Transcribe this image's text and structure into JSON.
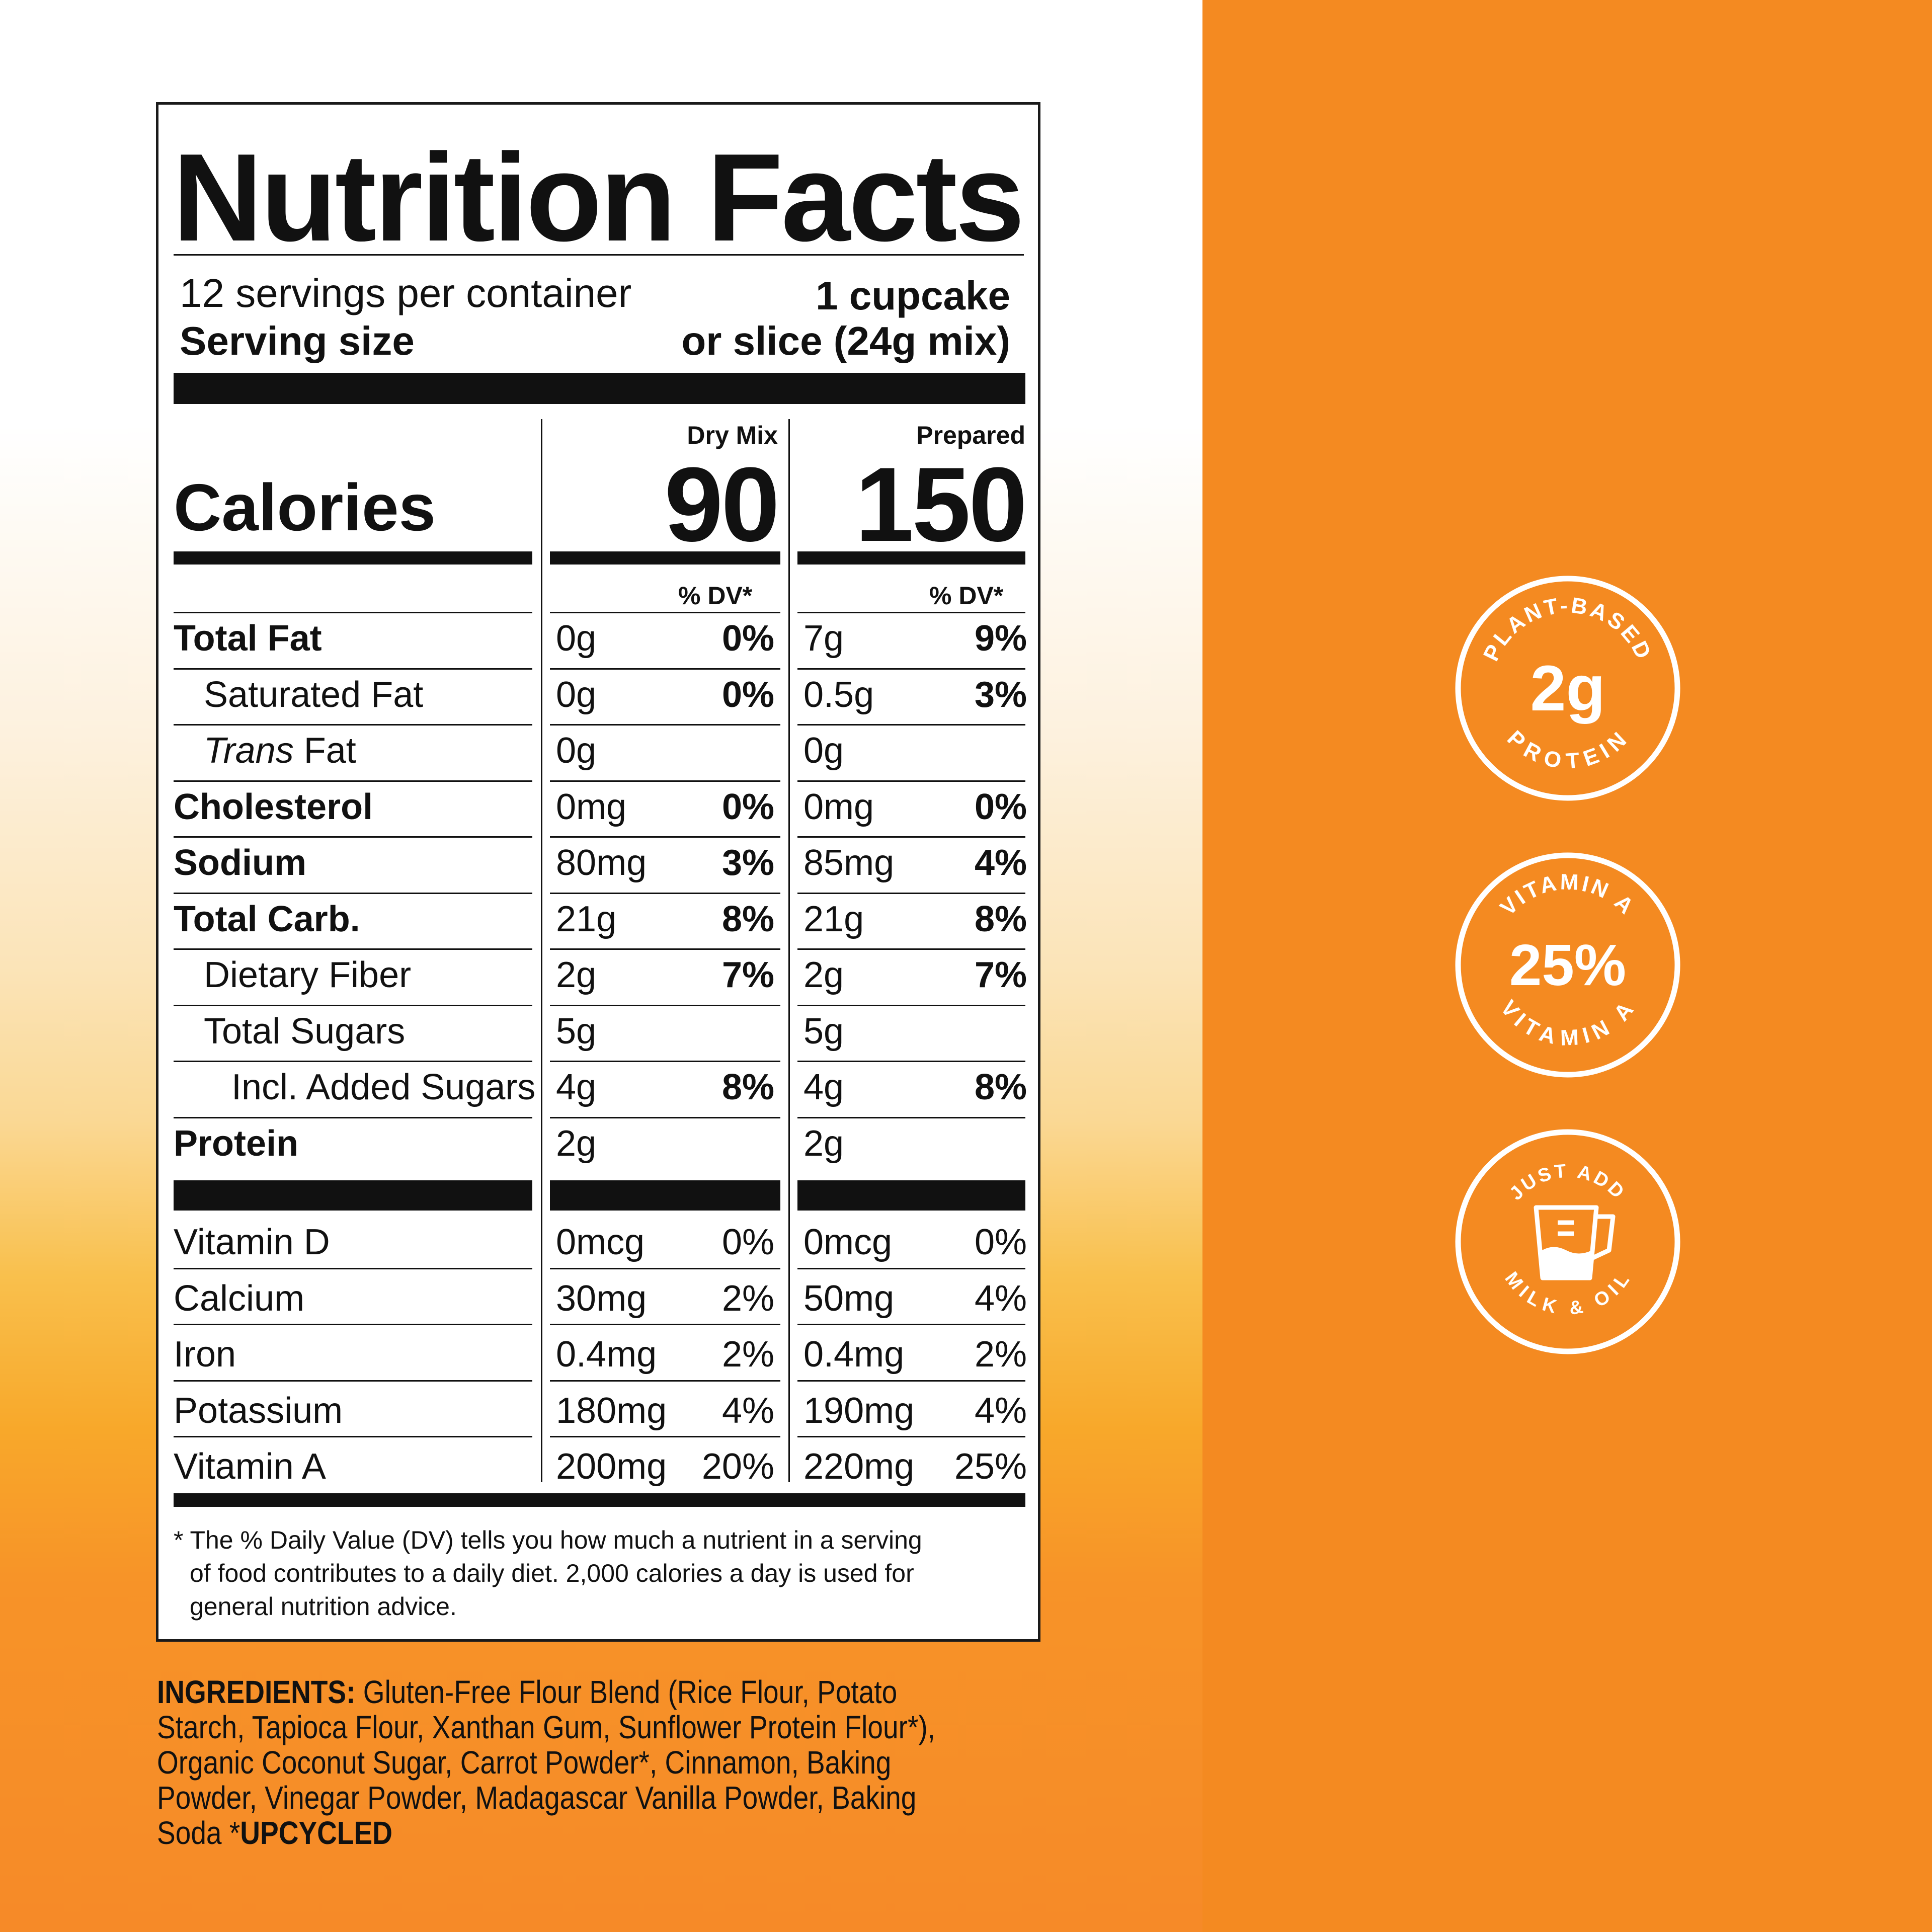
{
  "nutrition_facts": {
    "title": "Nutrition Facts",
    "servings_per_container": "12 servings per container",
    "serving_size_label": "Serving size",
    "serving_size_line1": "1 cupcake",
    "serving_size_line2": "or slice (24g mix)",
    "columns": {
      "dry": "Dry Mix",
      "prepared": "Prepared"
    },
    "calories_label": "Calories",
    "calories_dry": "90",
    "calories_prepared": "150",
    "dv_header": "% DV*",
    "rows": [
      {
        "label": "Total Fat",
        "dry_amt": "0g",
        "dry_dv": "0%",
        "prep_amt": "7g",
        "prep_dv": "9%"
      },
      {
        "label": "Saturated Fat",
        "dry_amt": "0g",
        "dry_dv": "0%",
        "prep_amt": "0.5g",
        "prep_dv": "3%"
      },
      {
        "label_italic": "Trans",
        "label": " Fat",
        "dry_amt": "0g",
        "dry_dv": "",
        "prep_amt": "0g",
        "prep_dv": ""
      },
      {
        "label": "Cholesterol",
        "dry_amt": "0mg",
        "dry_dv": "0%",
        "prep_amt": "0mg",
        "prep_dv": "0%"
      },
      {
        "label": "Sodium",
        "dry_amt": "80mg",
        "dry_dv": "3%",
        "prep_amt": "85mg",
        "prep_dv": "4%"
      },
      {
        "label": "Total Carb.",
        "dry_amt": "21g",
        "dry_dv": "8%",
        "prep_amt": "21g",
        "prep_dv": "8%"
      },
      {
        "label": "Dietary Fiber",
        "dry_amt": "2g",
        "dry_dv": "7%",
        "prep_amt": "2g",
        "prep_dv": "7%"
      },
      {
        "label": "Total Sugars",
        "dry_amt": "5g",
        "dry_dv": "",
        "prep_amt": "5g",
        "prep_dv": ""
      },
      {
        "label": "Incl. Added Sugars",
        "dry_amt": "4g",
        "dry_dv": "8%",
        "prep_amt": "4g",
        "prep_dv": "8%"
      },
      {
        "label": "Protein",
        "dry_amt": "2g",
        "dry_dv": "",
        "prep_amt": "2g",
        "prep_dv": ""
      }
    ],
    "micros": [
      {
        "label": "Vitamin D",
        "dry_amt": "0mcg",
        "dry_dv": "0%",
        "prep_amt": "0mcg",
        "prep_dv": "0%"
      },
      {
        "label": "Calcium",
        "dry_amt": "30mg",
        "dry_dv": "2%",
        "prep_amt": "50mg",
        "prep_dv": "4%"
      },
      {
        "label": "Iron",
        "dry_amt": "0.4mg",
        "dry_dv": "2%",
        "prep_amt": "0.4mg",
        "prep_dv": "2%"
      },
      {
        "label": "Potassium",
        "dry_amt": "180mg",
        "dry_dv": "4%",
        "prep_amt": "190mg",
        "prep_dv": "4%"
      },
      {
        "label": "Vitamin A",
        "dry_amt": "200mg",
        "dry_dv": "20%",
        "prep_amt": "220mg",
        "prep_dv": "25%"
      }
    ],
    "footnote_line1": "* The % Daily Value (DV) tells you how much a nutrient in a serving",
    "footnote_line2": "of food contributes to a daily diet. 2,000 calories a day is used for",
    "footnote_line3": "general nutrition advice."
  },
  "ingredients": {
    "heading": "INGREDIENTS:",
    "text": " Gluten-Free Flour Blend (Rice Flour, Potato Starch, Tapioca Flour, Xanthan Gum, Sunflower Protein Flour*), Organic Coconut Sugar, Carrot Powder*, Cinnamon, Baking Powder, Vinegar Powder, Madagascar Vanilla Powder, Baking Soda *",
    "tail": "UPCYCLED"
  },
  "badges": {
    "protein": {
      "top": "PLANT-BASED",
      "value": "2g",
      "bottom": "PROTEIN"
    },
    "vitamin": {
      "top": "VITAMIN A",
      "value": "25%",
      "bottom": "VITAMIN A"
    },
    "add": {
      "top": "JUST ADD",
      "bottom": "MILK & OIL"
    }
  },
  "colors": {
    "orange": "#f48a21",
    "white": "#ffffff",
    "black": "#111111"
  }
}
